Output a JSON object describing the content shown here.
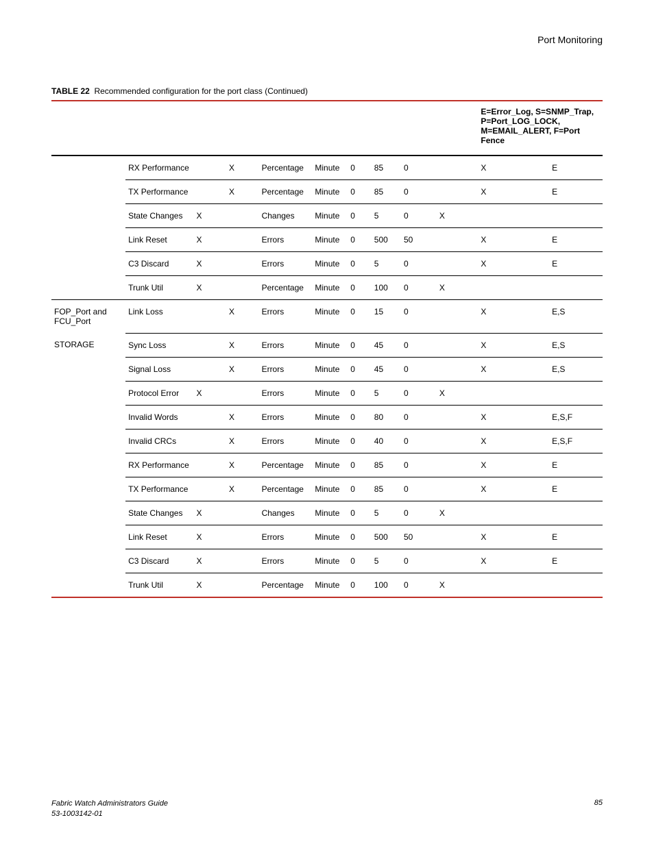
{
  "header": {
    "section_title": "Port Monitoring"
  },
  "caption": {
    "label": "TABLE 22",
    "text": "Recommended configuration for the port class (Continued)"
  },
  "legend": "E=Error_Log, S=SNMP_Trap, P=Port_LOG_LOCK, M=EMAIL_ALERT, F=Port Fence",
  "group1_label": "",
  "group2_label_line1": "FOP_Port and FCU_Port",
  "group2_label_line2": "STORAGE",
  "rows": [
    {
      "group": "",
      "counter": "RX Performance",
      "x1": "",
      "x2": "X",
      "unit": "Percentage",
      "tb": "Minute",
      "low": "0",
      "high": "85",
      "buf": "0",
      "below": "",
      "above": "X",
      "actions": "E"
    },
    {
      "group": "",
      "counter": "TX Performance",
      "x1": "",
      "x2": "X",
      "unit": "Percentage",
      "tb": "Minute",
      "low": "0",
      "high": "85",
      "buf": "0",
      "below": "",
      "above": "X",
      "actions": "E"
    },
    {
      "group": "",
      "counter": "State Changes",
      "x1": "X",
      "x2": "",
      "unit": "Changes",
      "tb": "Minute",
      "low": "0",
      "high": "5",
      "buf": "0",
      "below": "X",
      "above": "",
      "actions": ""
    },
    {
      "group": "",
      "counter": "Link Reset",
      "x1": "X",
      "x2": "",
      "unit": "Errors",
      "tb": "Minute",
      "low": "0",
      "high": "500",
      "buf": "50",
      "below": "",
      "above": "X",
      "actions": "E"
    },
    {
      "group": "",
      "counter": "C3 Discard",
      "x1": "X",
      "x2": "",
      "unit": "Errors",
      "tb": "Minute",
      "low": "0",
      "high": "5",
      "buf": "0",
      "below": "",
      "above": "X",
      "actions": "E"
    },
    {
      "group": "",
      "counter": "Trunk Util",
      "x1": "X",
      "x2": "",
      "unit": "Percentage",
      "tb": "Minute",
      "low": "0",
      "high": "100",
      "buf": "0",
      "below": "X",
      "above": "",
      "actions": ""
    },
    {
      "group": "g2a",
      "counter": "Link Loss",
      "x1": "",
      "x2": "X",
      "unit": "Errors",
      "tb": "Minute",
      "low": "0",
      "high": "15",
      "buf": "0",
      "below": "",
      "above": "X",
      "actions": "E,S"
    },
    {
      "group": "g2b",
      "counter": "Sync Loss",
      "x1": "",
      "x2": "X",
      "unit": "Errors",
      "tb": "Minute",
      "low": "0",
      "high": "45",
      "buf": "0",
      "below": "",
      "above": "X",
      "actions": "E,S"
    },
    {
      "group": "",
      "counter": "Signal Loss",
      "x1": "",
      "x2": "X",
      "unit": "Errors",
      "tb": "Minute",
      "low": "0",
      "high": "45",
      "buf": "0",
      "below": "",
      "above": "X",
      "actions": "E,S"
    },
    {
      "group": "",
      "counter": "Protocol Error",
      "x1": "X",
      "x2": "",
      "unit": "Errors",
      "tb": "Minute",
      "low": "0",
      "high": "5",
      "buf": "0",
      "below": "X",
      "above": "",
      "actions": ""
    },
    {
      "group": "",
      "counter": "Invalid Words",
      "x1": "",
      "x2": "X",
      "unit": "Errors",
      "tb": "Minute",
      "low": "0",
      "high": "80",
      "buf": "0",
      "below": "",
      "above": "X",
      "actions": "E,S,F"
    },
    {
      "group": "",
      "counter": "Invalid CRCs",
      "x1": "",
      "x2": "X",
      "unit": "Errors",
      "tb": "Minute",
      "low": "0",
      "high": "40",
      "buf": "0",
      "below": "",
      "above": "X",
      "actions": "E,S,F"
    },
    {
      "group": "",
      "counter": "RX Performance",
      "x1": "",
      "x2": "X",
      "unit": "Percentage",
      "tb": "Minute",
      "low": "0",
      "high": "85",
      "buf": "0",
      "below": "",
      "above": "X",
      "actions": "E"
    },
    {
      "group": "",
      "counter": "TX Performance",
      "x1": "",
      "x2": "X",
      "unit": "Percentage",
      "tb": "Minute",
      "low": "0",
      "high": "85",
      "buf": "0",
      "below": "",
      "above": "X",
      "actions": "E"
    },
    {
      "group": "",
      "counter": "State Changes",
      "x1": "X",
      "x2": "",
      "unit": "Changes",
      "tb": "Minute",
      "low": "0",
      "high": "5",
      "buf": "0",
      "below": "X",
      "above": "",
      "actions": ""
    },
    {
      "group": "",
      "counter": "Link Reset",
      "x1": "X",
      "x2": "",
      "unit": "Errors",
      "tb": "Minute",
      "low": "0",
      "high": "500",
      "buf": "50",
      "below": "",
      "above": "X",
      "actions": "E"
    },
    {
      "group": "",
      "counter": "C3 Discard",
      "x1": "X",
      "x2": "",
      "unit": "Errors",
      "tb": "Minute",
      "low": "0",
      "high": "5",
      "buf": "0",
      "below": "",
      "above": "X",
      "actions": "E"
    },
    {
      "group": "",
      "counter": "Trunk Util",
      "x1": "X",
      "x2": "",
      "unit": "Percentage",
      "tb": "Minute",
      "low": "0",
      "high": "100",
      "buf": "0",
      "below": "X",
      "above": "",
      "actions": ""
    }
  ],
  "footer": {
    "guide_title": "Fabric Watch Administrators Guide",
    "doc_number": "53-1003142-01",
    "page_number": "85"
  }
}
